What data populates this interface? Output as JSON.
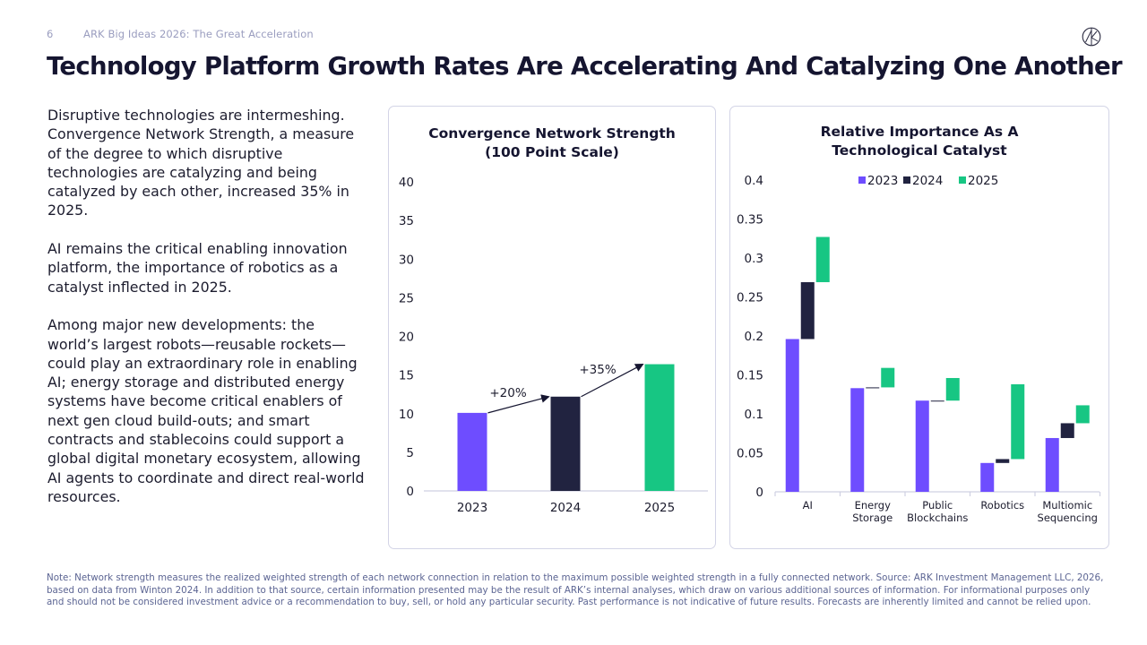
{
  "header": {
    "page_number": "6",
    "deck_title": "ARK Big Ideas 2026: The Great Acceleration",
    "logo_icon": "ark-logo-icon"
  },
  "title": "Technology Platform Growth Rates Are Accelerating And Catalyzing One Another",
  "body": {
    "paragraphs": [
      "Disruptive technologies are intermeshing. Convergence Network Strength, a measure of the degree to which disruptive technologies are catalyzing and being catalyzed by each other, increased 35% in 2025.",
      "AI remains the critical enabling innovation platform, the importance of robotics as a catalyst inflected in 2025.",
      "Among major new developments: the world’s largest robots—reusable rockets—could play an extraordinary role in enabling AI; energy storage and distributed energy systems have become critical enablers of next gen cloud build-outs; and smart contracts and stablecoins could support a global digital monetary ecosystem, allowing AI agents to coordinate and direct real-world resources."
    ]
  },
  "colors": {
    "2023": "#6e4dff",
    "2024": "#212340",
    "2025": "#17c683",
    "axis": "#cfd0e2",
    "text": "#1c1c2e"
  },
  "chart_data": [
    {
      "type": "bar",
      "title_line1": "Convergence Network Strength",
      "title_line2": "(100 Point Scale)",
      "categories": [
        "2023",
        "2024",
        "2025"
      ],
      "values": [
        10.1,
        12.2,
        16.4
      ],
      "ylim": [
        0,
        40
      ],
      "yticks": [
        0,
        5,
        10,
        15,
        20,
        25,
        30,
        35,
        40
      ],
      "xlabel": "",
      "ylabel": "",
      "grid": false,
      "annotations": [
        {
          "from": "2023",
          "to": "2024",
          "label": "+20%"
        },
        {
          "from": "2024",
          "to": "2025",
          "label": "+35%"
        }
      ]
    },
    {
      "type": "bar",
      "subtype": "waterfall",
      "title_line1": "Relative Importance As A",
      "title_line2": "Technological Catalyst",
      "legend": [
        "2023",
        "2024",
        "2025"
      ],
      "legend_position": "top-center",
      "categories": [
        {
          "line1": "AI",
          "line2": ""
        },
        {
          "line1": "Energy",
          "line2": "Storage"
        },
        {
          "line1": "Public",
          "line2": "Blockchains"
        },
        {
          "line1": "Robotics",
          "line2": ""
        },
        {
          "line1": "Multiomic",
          "line2": "Sequencing"
        }
      ],
      "series": [
        {
          "name": "2023",
          "values": [
            0.196,
            0.133,
            0.117,
            0.037,
            0.069
          ]
        },
        {
          "name": "2024",
          "values": [
            0.269,
            0.134,
            0.117,
            0.042,
            0.088
          ]
        },
        {
          "name": "2025",
          "values": [
            0.327,
            0.159,
            0.146,
            0.138,
            0.111
          ]
        }
      ],
      "ylim": [
        0,
        0.4
      ],
      "yticks": [
        "0",
        "0.05",
        "0.1",
        "0.15",
        "0.2",
        "0.25",
        "0.3",
        "0.35",
        "0.4"
      ],
      "xlabel": "",
      "ylabel": "",
      "grid": false
    }
  ],
  "footnote": "Note: Network strength measures the realized weighted strength of each network connection in relation to the maximum possible weighted strength in a fully connected network. Source: ARK Investment Management LLC, 2026, based on data from Winton 2024. In addition to that source, certain information presented may be the result of ARK’s internal analyses, which draw on various additional sources of information. For informational purposes only and should not be considered investment advice or a recommendation to buy, sell, or hold any particular security. Past performance is not indicative of future results. Forecasts are inherently limited and cannot be relied upon."
}
